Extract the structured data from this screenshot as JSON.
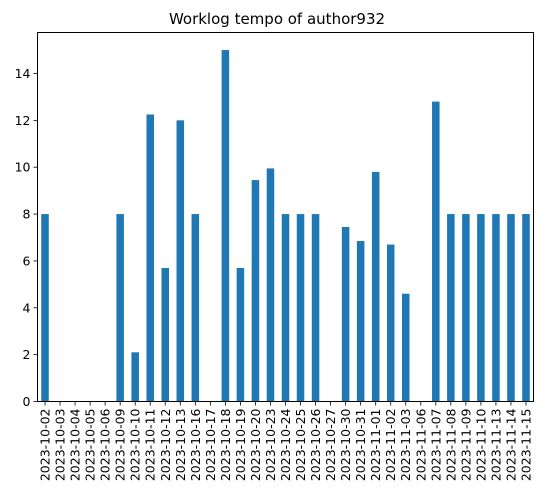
{
  "chart_data": {
    "type": "bar",
    "title": "Worklog tempo of author932",
    "xlabel": "",
    "ylabel": "",
    "ylim": [
      0,
      15.75
    ],
    "yticks": [
      0,
      2,
      4,
      6,
      8,
      10,
      12,
      14
    ],
    "grid": false,
    "bar_color": "#1f77b4",
    "categories": [
      "2023-10-02",
      "2023-10-03",
      "2023-10-04",
      "2023-10-05",
      "2023-10-06",
      "2023-10-09",
      "2023-10-10",
      "2023-10-11",
      "2023-10-12",
      "2023-10-13",
      "2023-10-16",
      "2023-10-17",
      "2023-10-18",
      "2023-10-19",
      "2023-10-20",
      "2023-10-23",
      "2023-10-24",
      "2023-10-25",
      "2023-10-26",
      "2023-10-27",
      "2023-10-30",
      "2023-10-31",
      "2023-11-01",
      "2023-11-02",
      "2023-11-03",
      "2023-11-06",
      "2023-11-07",
      "2023-11-08",
      "2023-11-09",
      "2023-11-10",
      "2023-11-13",
      "2023-11-14",
      "2023-11-15"
    ],
    "values": [
      8,
      0,
      0,
      0,
      0,
      8,
      2.1,
      12.25,
      5.7,
      12,
      8,
      0,
      15,
      5.7,
      9.45,
      9.95,
      8,
      8,
      8,
      0,
      7.45,
      6.85,
      9.8,
      6.7,
      4.6,
      0,
      12.8,
      8,
      8,
      8,
      8,
      8,
      8
    ]
  }
}
